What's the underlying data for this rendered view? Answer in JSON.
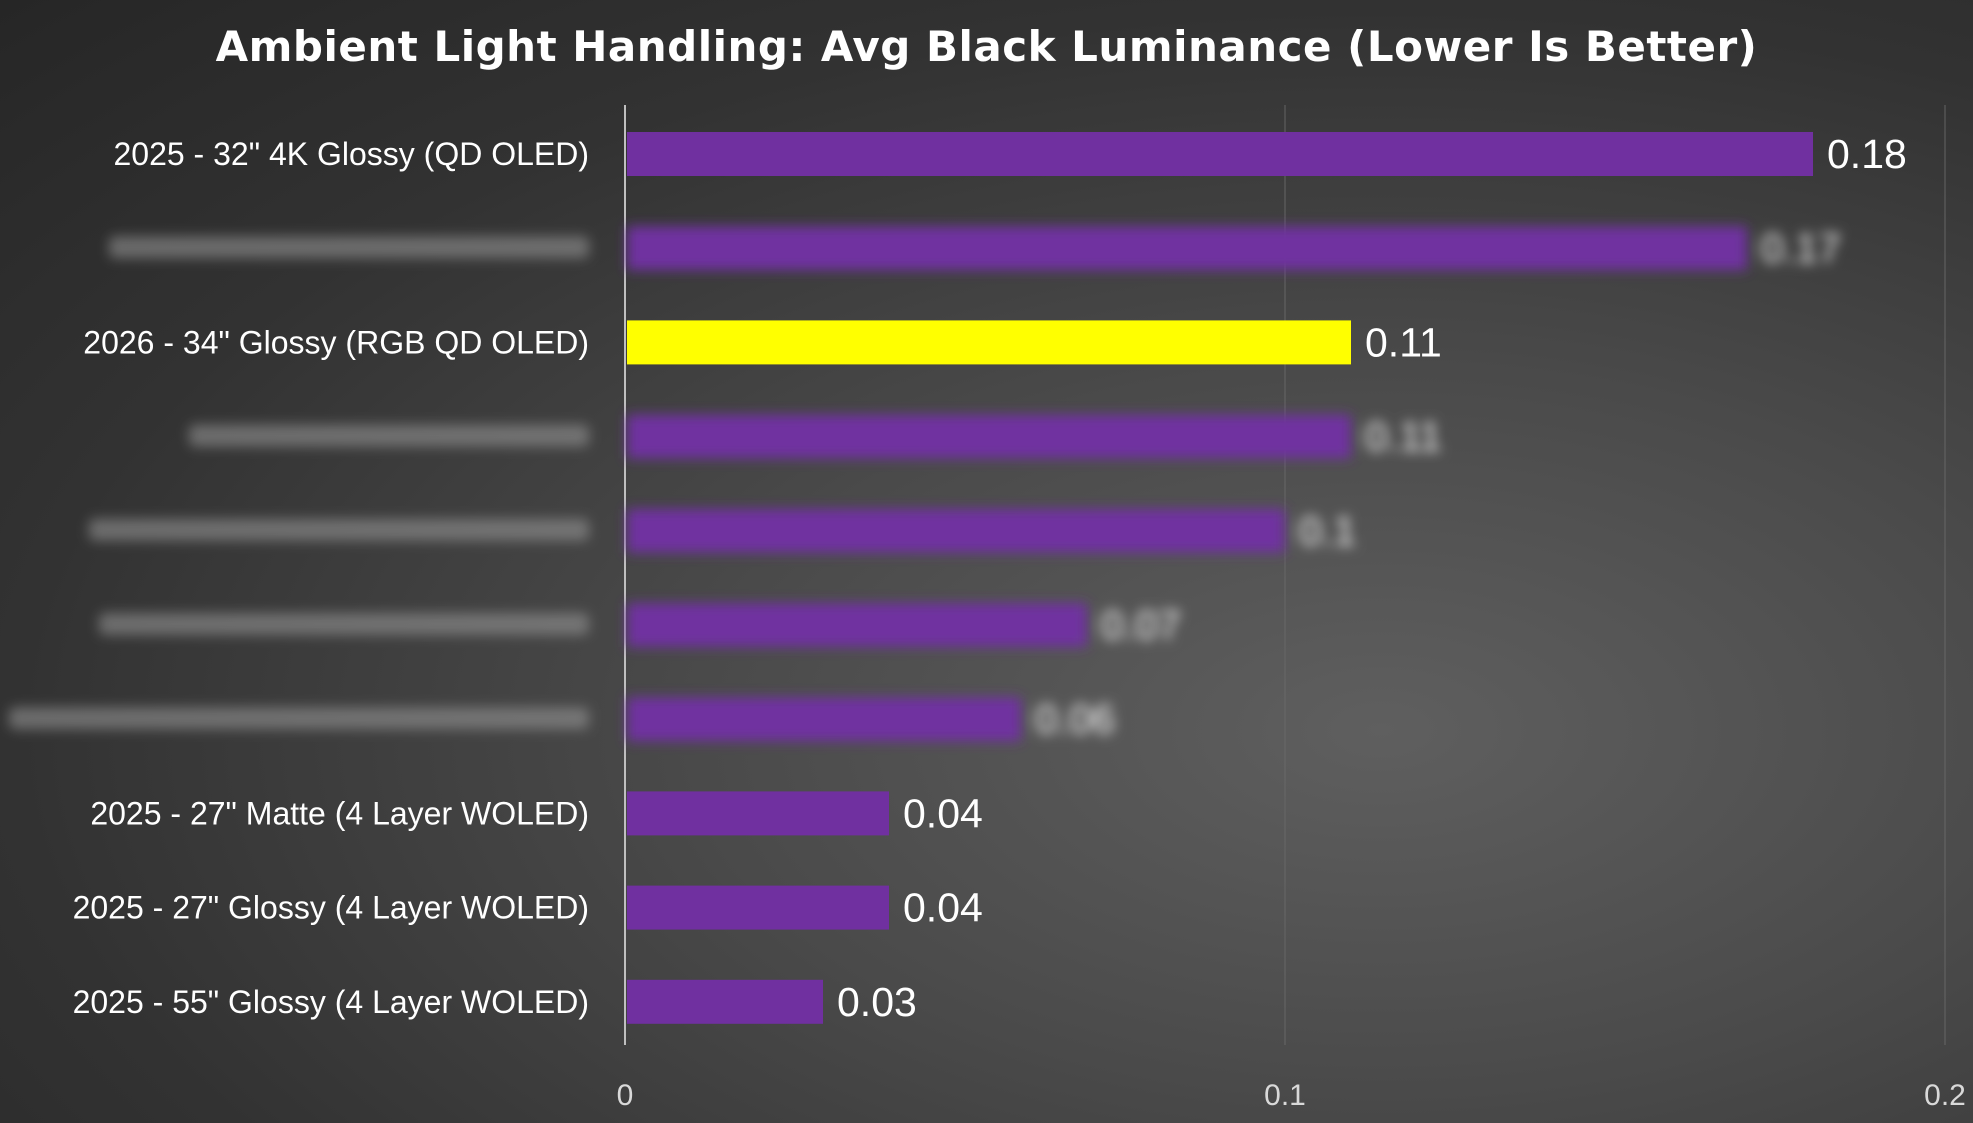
{
  "colors": {
    "bar": "#7030a0",
    "highlight": "#ffff00",
    "text": "#ffffff",
    "gridline": "#6a6a6a",
    "axis": "#bfbfbf",
    "tick_text": "#d9d9d9"
  },
  "chart_data": {
    "type": "bar",
    "orientation": "horizontal",
    "title": "Ambient Light Handling: Avg Black Luminance (Lower Is Better)",
    "xlabel": "",
    "ylabel": "",
    "xlim": [
      0,
      0.2
    ],
    "x_ticks": [
      "0",
      "0.1",
      "0.2"
    ],
    "x_tick_values": [
      0,
      0.1,
      0.2
    ],
    "grid": true,
    "legend": "none",
    "categories": [
      "2025 - 32\" 4K Glossy (QD OLED)",
      "",
      "2026 - 34\" Glossy (RGB QD OLED)",
      "",
      "",
      "",
      "",
      "2025 - 27\" Matte (4 Layer WOLED)",
      "2025 - 27\" Glossy (4 Layer WOLED)",
      "2025 - 55\" Glossy (4 Layer WOLED)"
    ],
    "values": [
      0.18,
      0.17,
      0.11,
      0.11,
      0.1,
      0.07,
      0.06,
      0.04,
      0.04,
      0.03
    ],
    "value_labels": [
      "0.18",
      "0.17",
      "0.11",
      "0.11",
      "0.1",
      "0.07",
      "0.06",
      "0.04",
      "0.04",
      "0.03"
    ],
    "blurred": [
      false,
      true,
      false,
      true,
      true,
      true,
      true,
      false,
      false,
      false
    ],
    "highlighted": [
      false,
      false,
      true,
      false,
      false,
      false,
      false,
      false,
      false,
      false
    ]
  }
}
